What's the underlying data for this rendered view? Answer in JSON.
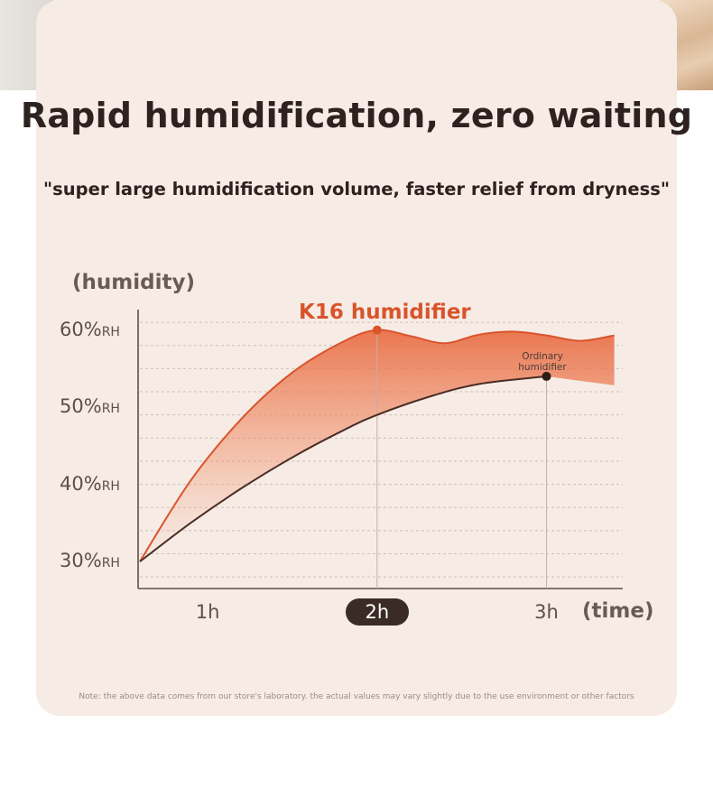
{
  "headline": "Rapid humidification, zero waiting",
  "subtitle": "\"super large humidification volume, faster relief from dryness\"",
  "footnote": "Note: the above data comes from our store's laboratory. the actual values may vary slightly due to the use environment or other factors",
  "colors": {
    "card_background": "#f6ebe5",
    "k16_series": "#d9542b",
    "ordinary_series": "#4a2c24",
    "text_dark": "#2e2220",
    "highlight_pill": "#3b2b26"
  },
  "chart_data": {
    "type": "line",
    "xlabel": "(time)",
    "ylabel": "(humidity)",
    "x_ticks": [
      {
        "value": 1,
        "label": "1h",
        "highlight": false
      },
      {
        "value": 2,
        "label": "2h",
        "highlight": true
      },
      {
        "value": 3,
        "label": "3h",
        "highlight": false
      }
    ],
    "y_ticks": [
      {
        "value": 30,
        "num": "30%",
        "unit": "RH"
      },
      {
        "value": 40,
        "num": "40%",
        "unit": "RH"
      },
      {
        "value": 50,
        "num": "50%",
        "unit": "RH"
      },
      {
        "value": 60,
        "num": "60%",
        "unit": "RH"
      }
    ],
    "xlim": [
      0.6,
      3.45
    ],
    "ylim": [
      26.5,
      63
    ],
    "grid": "dashed-horizontal",
    "series": [
      {
        "name": "K16 humidifier",
        "x": [
          0.6,
          0.9,
          1.2,
          1.5,
          1.8,
          2.0,
          2.2,
          2.4,
          2.6,
          2.8,
          3.0,
          3.2,
          3.4
        ],
        "y": [
          30,
          40.5,
          48.5,
          54.5,
          58.5,
          60,
          59.2,
          58.3,
          59.4,
          59.8,
          59.3,
          58.6,
          59.3
        ],
        "marker_at": 2.0
      },
      {
        "name": "Ordinary humidifier",
        "x": [
          0.6,
          0.9,
          1.2,
          1.5,
          1.8,
          2.0,
          2.3,
          2.6,
          3.0
        ],
        "y": [
          30,
          35,
          39.5,
          43.5,
          47,
          49,
          51.3,
          53,
          54
        ],
        "marker_at": 3.0
      }
    ]
  }
}
